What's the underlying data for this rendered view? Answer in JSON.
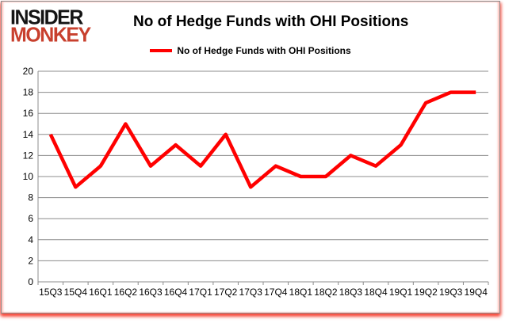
{
  "logo": {
    "line1": "INSIDER",
    "line2": "MONKEY"
  },
  "header": {
    "title": "No of Hedge Funds with OHI Positions"
  },
  "legend": {
    "label": "No of Hedge Funds with OHI Positions",
    "swatch_color": "#ff0000"
  },
  "colors": {
    "series_red": "#ff0000",
    "logo_black": "#141414",
    "logo_red": "#c8402e",
    "grid_gray": "#8c8c8c",
    "axis_gray": "#8c8c8c",
    "text_black": "#000000",
    "shadow_red": "#f74234",
    "card_border_gray": "#8c8c8c",
    "background_white": "#ffffff"
  },
  "chart_data": {
    "type": "line",
    "title": "No of Hedge Funds with OHI Positions",
    "categories": [
      "15Q3",
      "15Q4",
      "16Q1",
      "16Q2",
      "16Q3",
      "16Q4",
      "17Q1",
      "17Q2",
      "17Q3",
      "17Q4",
      "18Q1",
      "18Q2",
      "18Q3",
      "18Q4",
      "19Q1",
      "19Q2",
      "19Q3",
      "19Q4"
    ],
    "series": [
      {
        "name": "No of Hedge Funds with OHI Positions",
        "color": "#ff0000",
        "values": [
          14,
          9,
          11,
          15,
          11,
          13,
          11,
          14,
          9,
          11,
          10,
          10,
          12,
          11,
          13,
          17,
          18,
          18
        ]
      }
    ],
    "xlabel": "",
    "ylabel": "",
    "ylim": [
      0,
      20
    ],
    "ytick_step": 2,
    "grid": true,
    "legend_position": "top-center"
  }
}
